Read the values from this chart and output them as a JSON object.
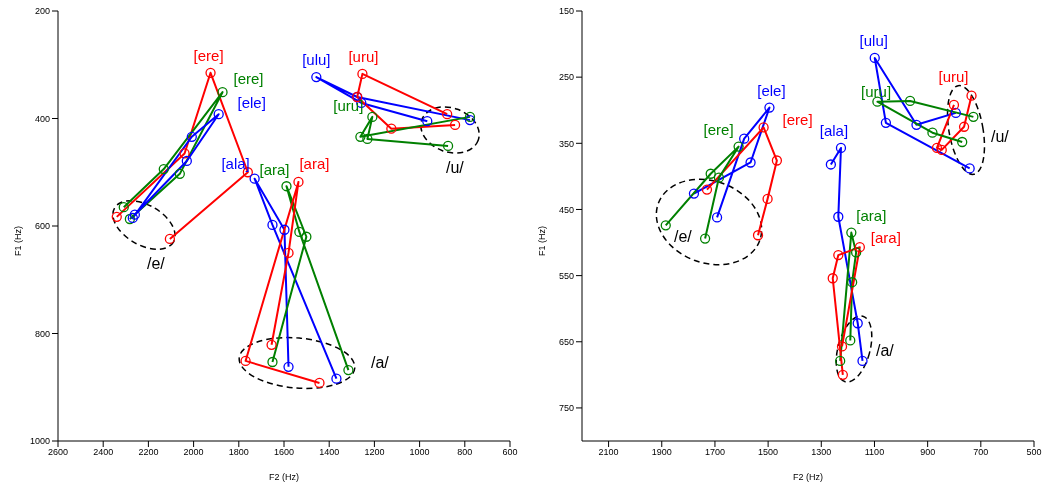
{
  "chart_data": [
    {
      "type": "line",
      "xlabel": "F2 (Hz)",
      "ylabel": "F1 (Hz)",
      "xlim": [
        2600,
        600
      ],
      "xticks": [
        2600,
        2400,
        2200,
        2000,
        1800,
        1600,
        1400,
        1200,
        1000,
        800,
        600
      ],
      "ylim": [
        1000,
        200
      ],
      "yticks": [
        200,
        400,
        600,
        800,
        1000
      ],
      "marker": "circle",
      "line_style": "solid",
      "annotations": [
        "/e/",
        "/a/",
        "/u/"
      ],
      "series": [
        {
          "name": "[ere]",
          "color": "#ff0000",
          "x": [
            2340,
            2040,
            1925,
            1760,
            2105
          ],
          "values": [
            583,
            465,
            315,
            500,
            624
          ]
        },
        {
          "name": "[ere]",
          "color": "#008000",
          "x": [
            2309,
            2132,
            1872,
            2061,
            2282
          ],
          "values": [
            565,
            494,
            351,
            503,
            587
          ]
        },
        {
          "name": "[ele]",
          "color": "#0000ff",
          "x": [
            2269,
            2008,
            1889,
            2030,
            2260
          ],
          "values": [
            585,
            434,
            392,
            479,
            579
          ]
        },
        {
          "name": "[ala]",
          "color": "#0000ff",
          "x": [
            1368,
            1651,
            1730,
            1598,
            1580
          ],
          "values": [
            884,
            598,
            512,
            607,
            862
          ]
        },
        {
          "name": "[ara]",
          "color": "#008000",
          "x": [
            1315,
            1532,
            1589,
            1501,
            1651
          ],
          "values": [
            868,
            611,
            526,
            620,
            853
          ]
        },
        {
          "name": "[ara]",
          "color": "#ff0000",
          "x": [
            1443,
            1770,
            1536,
            1580,
            1655
          ],
          "values": [
            892,
            851,
            518,
            650,
            821
          ]
        },
        {
          "name": "[ulu]",
          "color": "#0000ff",
          "x": [
            777,
            1276,
            1457,
            1258,
            966
          ],
          "values": [
            403,
            360,
            323,
            371,
            405
          ]
        },
        {
          "name": "[uru]",
          "color": "#ff0000",
          "x": [
            843,
            1125,
            1276,
            1253,
            878
          ],
          "values": [
            412,
            419,
            360,
            317,
            392
          ]
        },
        {
          "name": "[uru]",
          "color": "#008000",
          "x": [
            777,
            1262,
            1209,
            1231,
            874
          ],
          "values": [
            397,
            434,
            397,
            438,
            451
          ]
        }
      ]
    },
    {
      "type": "line",
      "xlabel": "F2 (Hz)",
      "ylabel": "F1 (Hz)",
      "xlim": [
        2200,
        500
      ],
      "xticks": [
        2100,
        1900,
        1700,
        1500,
        1300,
        1100,
        900,
        700,
        500
      ],
      "ylim": [
        800,
        150
      ],
      "yticks": [
        150,
        250,
        350,
        450,
        550,
        650,
        750
      ],
      "marker": "circle",
      "line_style": "solid",
      "annotations": [
        "/e/",
        "/a/",
        "/u/"
      ],
      "series": [
        {
          "name": "[ele]",
          "color": "#0000ff",
          "x": [
            1692,
            1590,
            1495,
            1566,
            1779
          ],
          "values": [
            462,
            343,
            296,
            379,
            426
          ]
        },
        {
          "name": "[ere]",
          "color": "#ff0000",
          "x": [
            1538,
            1502,
            1467,
            1517,
            1730
          ],
          "values": [
            489,
            434,
            376,
            326,
            420
          ]
        },
        {
          "name": "[ere]",
          "color": "#008000",
          "x": [
            1885,
            1716,
            1611,
            1685,
            1737
          ],
          "values": [
            474,
            396,
            355,
            402,
            494
          ]
        },
        {
          "name": "[ala]",
          "color": "#0000ff",
          "x": [
            1264,
            1226,
            1236,
            1163,
            1145
          ],
          "values": [
            382,
            357,
            461,
            622,
            679
          ]
        },
        {
          "name": "[ara]",
          "color": "#008000",
          "x": [
            1229,
            1187,
            1169,
            1184,
            1191
          ],
          "values": [
            679,
            485,
            515,
            560,
            648
          ]
        },
        {
          "name": "[ara]",
          "color": "#ff0000",
          "x": [
            1219,
            1257,
            1236,
            1155,
            1222
          ],
          "values": [
            700,
            554,
            519,
            507,
            657
          ]
        },
        {
          "name": "[ulu]",
          "color": "#0000ff",
          "x": [
            742,
            1057,
            1099,
            942,
            794
          ],
          "values": [
            388,
            319,
            221,
            322,
            304
          ]
        },
        {
          "name": "[uru]",
          "color": "#ff0000",
          "x": [
            735,
            763,
            847,
            865,
            801
          ],
          "values": [
            278,
            325,
            360,
            357,
            292
          ]
        },
        {
          "name": "[uru]",
          "color": "#008000",
          "x": [
            728,
            966,
            1089,
            882,
            770
          ],
          "values": [
            310,
            286,
            287,
            334,
            348
          ]
        }
      ]
    }
  ]
}
